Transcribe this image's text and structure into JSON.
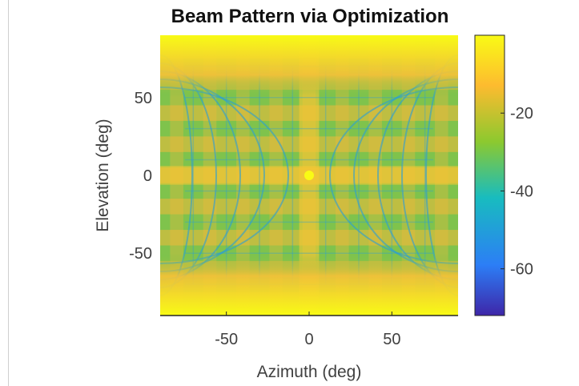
{
  "chart_data": {
    "type": "heatmap",
    "title": "Beam Pattern via Optimization",
    "xlabel": "Azimuth (deg)",
    "ylabel": "Elevation (deg)",
    "xlim": [
      -90,
      90
    ],
    "ylim": [
      -90,
      90
    ],
    "xticks": [
      -50,
      0,
      50
    ],
    "yticks": [
      50,
      0,
      -50
    ],
    "colorbar": {
      "ticks": [
        -20,
        -40,
        -60
      ],
      "range": [
        -72,
        0
      ],
      "colormap": [
        "#3e26a8",
        "#2c7ef6",
        "#18bcbf",
        "#8cc92f",
        "#fdbb2f",
        "#f9fb15"
      ]
    },
    "grid": false
  }
}
